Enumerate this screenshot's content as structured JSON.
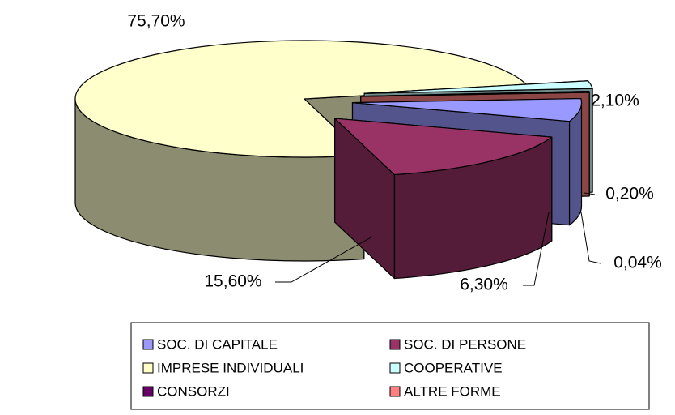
{
  "chart_data": {
    "type": "pie3d",
    "series": [
      {
        "name": "SOC. DI CAPITALE",
        "color": "#9999ff",
        "values": [
          6.3
        ],
        "value_labels": [
          "6,30%"
        ]
      },
      {
        "name": "SOC. DI PERSONE",
        "color": "#993366",
        "values": [
          15.6
        ],
        "value_labels": [
          "15,60%"
        ]
      },
      {
        "name": "IMPRESE INDIVIDUALI",
        "color": "#ffffcc",
        "values": [
          75.7
        ],
        "value_labels": [
          "75,70%"
        ]
      },
      {
        "name": "COOPERATIVE",
        "color": "#ccffff",
        "values": [
          2.1
        ],
        "value_labels": [
          "2,10%"
        ]
      },
      {
        "name": "CONSORZI",
        "color": "#660066",
        "values": [
          0.2
        ],
        "value_labels": [
          "0,20%"
        ]
      },
      {
        "name": "ALTRE FORME",
        "color": "#ff8080",
        "values": [
          0.04
        ],
        "value_labels": [
          "0,04%"
        ]
      }
    ],
    "legend": "bottom"
  }
}
